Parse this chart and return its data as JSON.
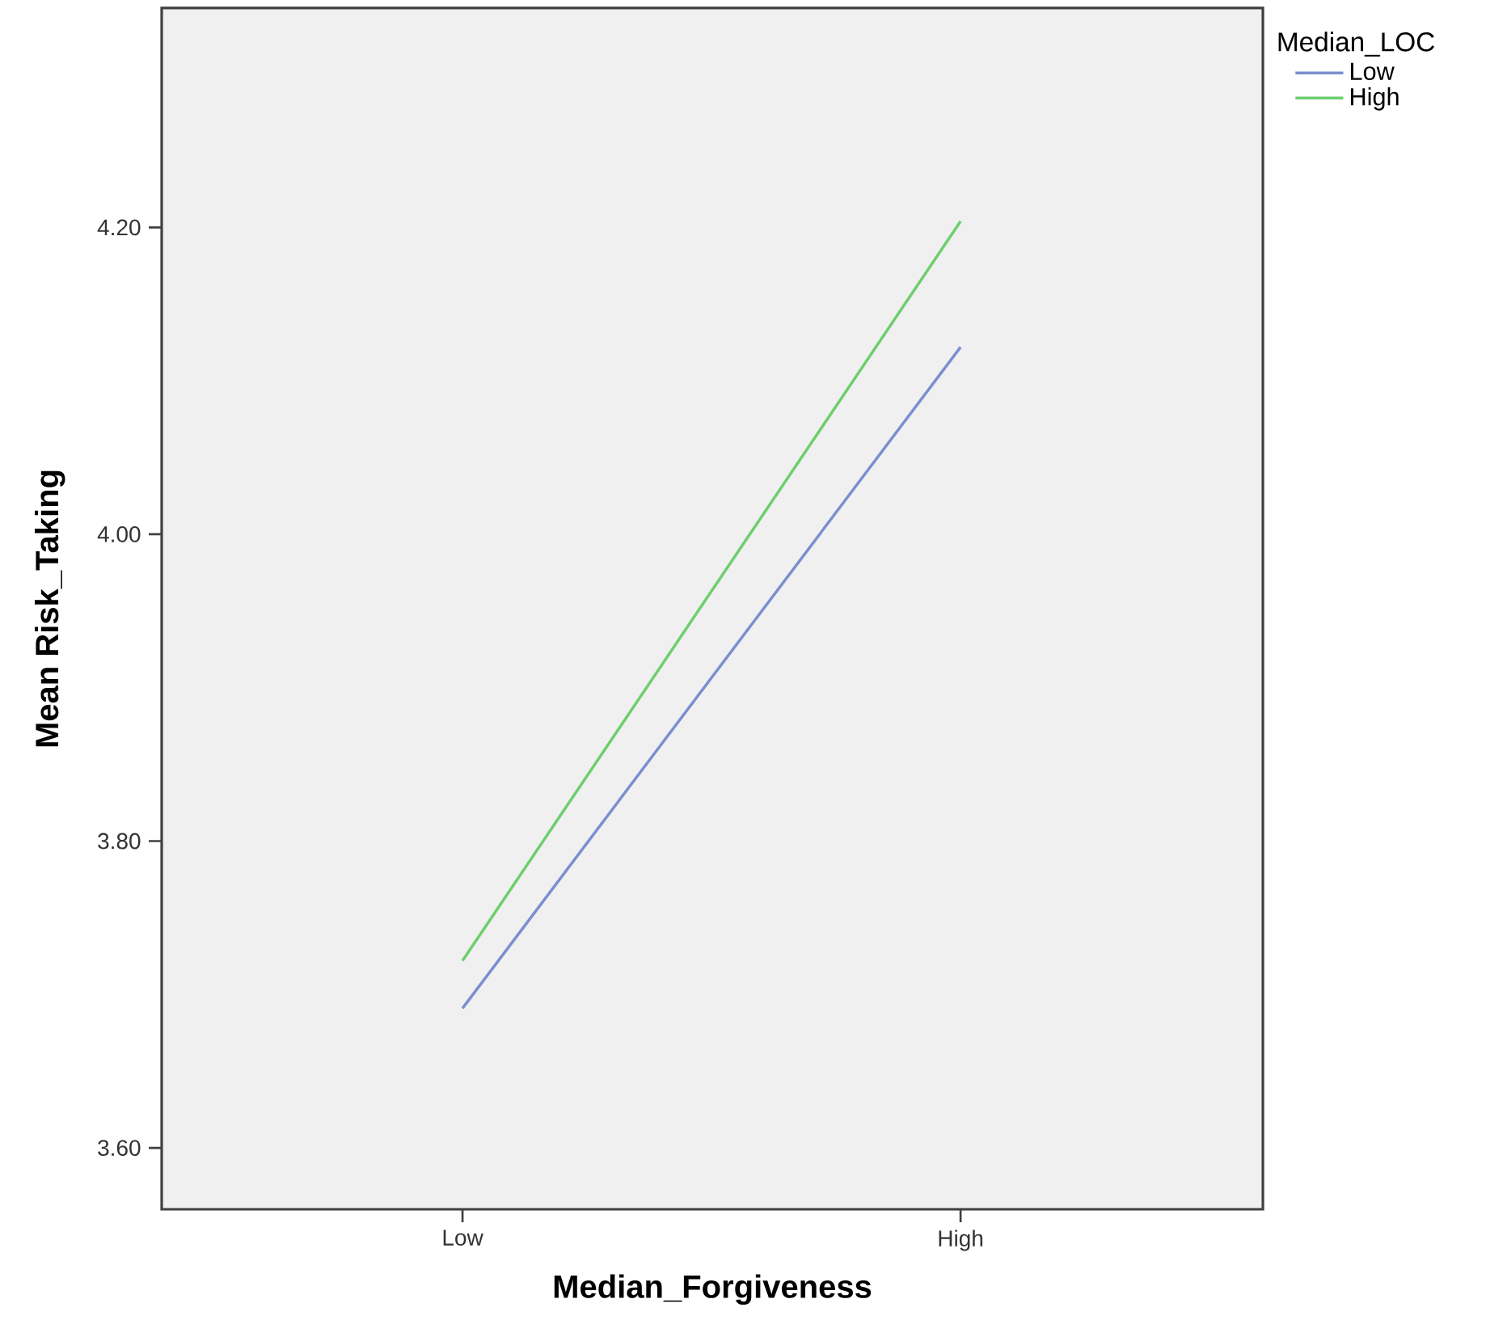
{
  "chart_data": {
    "type": "line",
    "xlabel": "Median_Forgiveness",
    "ylabel": "Mean Risk_Taking",
    "legend_title": "Median_LOC",
    "categories": [
      "Low",
      "High"
    ],
    "series": [
      {
        "name": "Low",
        "color": "#7b8ecf",
        "values": [
          3.691,
          4.122
        ]
      },
      {
        "name": "High",
        "color": "#6ccf6c",
        "values": [
          3.722,
          4.204
        ]
      }
    ],
    "ylim": [
      3.56,
      4.343
    ],
    "yticks": [
      {
        "value": 3.6,
        "label": "3.60"
      },
      {
        "value": 3.8,
        "label": "3.80"
      },
      {
        "value": 4.0,
        "label": "4.00"
      },
      {
        "value": 4.2,
        "label": "4.20"
      }
    ],
    "grid": false,
    "legend": "top right",
    "marker": "none",
    "line_style": "solid"
  }
}
